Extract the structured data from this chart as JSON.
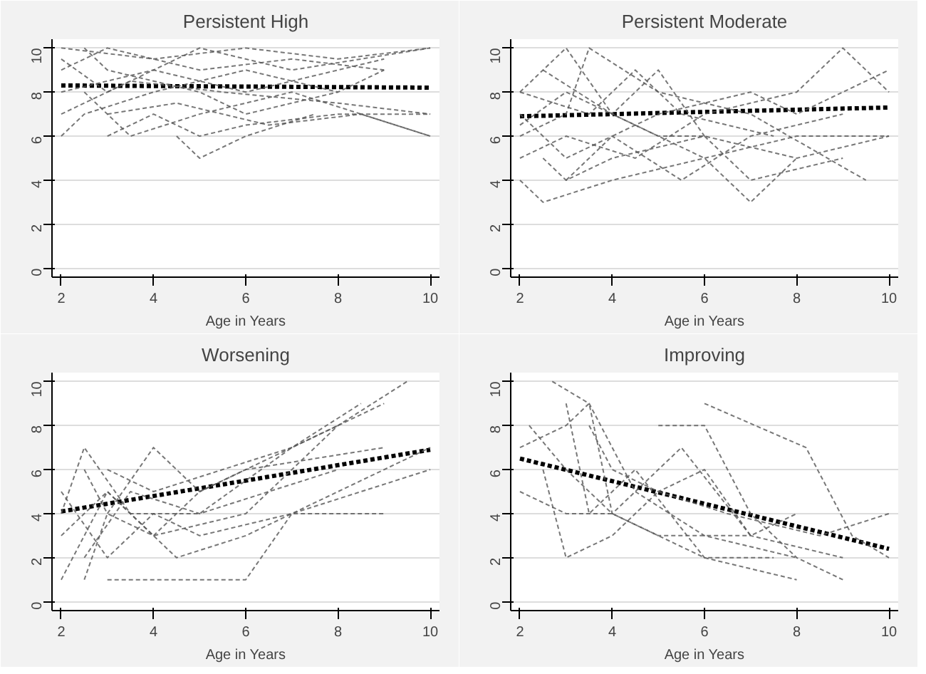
{
  "chart_data": [
    {
      "type": "line",
      "title": "Persistent High",
      "xlabel": "Age in Years",
      "xlim": [
        1.8,
        10.2
      ],
      "ylim": [
        -0.4,
        10.4
      ],
      "xticks": [
        2,
        4,
        6,
        8,
        10
      ],
      "yticks": [
        0,
        2,
        4,
        6,
        8,
        10
      ],
      "grid": "y",
      "line_style": "dashed",
      "series": [
        {
          "color": "#000000",
          "x": [
            2,
            10
          ],
          "values": [
            8.3,
            8.2
          ]
        },
        {
          "color": "#555555",
          "x": [
            2,
            4,
            6,
            8,
            10
          ],
          "values": [
            10,
            9.5,
            10,
            9.5,
            10
          ]
        },
        {
          "color": "#555555",
          "x": [
            2,
            3,
            5,
            7,
            9
          ],
          "values": [
            9,
            10,
            9,
            9.5,
            9
          ]
        },
        {
          "color": "#555555",
          "x": [
            2,
            3.5,
            5.5,
            8,
            10
          ],
          "values": [
            7,
            8.5,
            8,
            7.5,
            7
          ]
        },
        {
          "color": "#555555",
          "x": [
            2,
            2.5,
            4,
            6,
            8
          ],
          "values": [
            6,
            7,
            8,
            9,
            8
          ]
        },
        {
          "color": "#555555",
          "x": [
            2.5,
            3.5,
            5,
            7,
            10
          ],
          "values": [
            8,
            6,
            7,
            8,
            6
          ]
        },
        {
          "color": "#555555",
          "x": [
            4.5,
            5,
            6,
            7.5
          ],
          "values": [
            6,
            5,
            6,
            7
          ]
        },
        {
          "color": "#555555",
          "x": [
            2,
            3,
            4,
            6,
            9
          ],
          "values": [
            9.5,
            8,
            9,
            8,
            9.5
          ]
        },
        {
          "color": "#555555",
          "x": [
            3,
            4,
            5,
            6,
            8,
            10
          ],
          "values": [
            6,
            7,
            6,
            6.5,
            7,
            7
          ]
        },
        {
          "color": "#555555",
          "x": [
            2,
            4,
            5,
            7,
            10
          ],
          "values": [
            8,
            9,
            10,
            9,
            10
          ]
        },
        {
          "color": "#555555",
          "x": [
            2.5,
            3,
            5,
            6,
            8,
            9
          ],
          "values": [
            10,
            9,
            8,
            7,
            8,
            9
          ]
        },
        {
          "color": "#555555",
          "x": [
            3,
            4.5,
            6.5,
            8.5,
            10
          ],
          "values": [
            7,
            7.5,
            6.5,
            7,
            6
          ]
        }
      ]
    },
    {
      "type": "line",
      "title": "Persistent Moderate",
      "xlabel": "Age in Years",
      "xlim": [
        1.8,
        10.2
      ],
      "ylim": [
        -0.4,
        10.4
      ],
      "xticks": [
        2,
        4,
        6,
        8,
        10
      ],
      "yticks": [
        0,
        2,
        4,
        6,
        8,
        10
      ],
      "grid": "y",
      "line_style": "dashed",
      "series": [
        {
          "color": "#000000",
          "x": [
            2,
            10
          ],
          "values": [
            6.9,
            7.3
          ]
        },
        {
          "color": "#555555",
          "x": [
            2,
            3,
            4,
            5,
            6
          ],
          "values": [
            8,
            10,
            7,
            9,
            6
          ]
        },
        {
          "color": "#555555",
          "x": [
            2,
            2.5,
            4,
            6,
            8,
            10
          ],
          "values": [
            4,
            3,
            4,
            5,
            6,
            6
          ]
        },
        {
          "color": "#555555",
          "x": [
            2,
            3,
            3.5,
            5,
            7,
            9.5
          ],
          "values": [
            6,
            7,
            10,
            8,
            7,
            4
          ]
        },
        {
          "color": "#555555",
          "x": [
            2.5,
            4,
            5,
            6,
            7,
            8
          ],
          "values": [
            9,
            7,
            6,
            5,
            3,
            5
          ]
        },
        {
          "color": "#555555",
          "x": [
            2,
            3,
            4.5,
            6,
            8,
            9,
            10
          ],
          "values": [
            5,
            6,
            5,
            7,
            8,
            10,
            8
          ]
        },
        {
          "color": "#555555",
          "x": [
            2,
            3,
            4,
            5.5,
            7,
            9
          ],
          "values": [
            7,
            5,
            6,
            4,
            6,
            7
          ]
        },
        {
          "color": "#555555",
          "x": [
            3,
            4,
            5,
            7,
            8,
            10
          ],
          "values": [
            4,
            6,
            7,
            8,
            7,
            9
          ]
        },
        {
          "color": "#555555",
          "x": [
            2,
            3,
            5,
            6,
            8,
            10
          ],
          "values": [
            6.5,
            8,
            6,
            6,
            5,
            6
          ]
        },
        {
          "color": "#555555",
          "x": [
            2.5,
            3,
            4,
            6,
            7,
            9
          ],
          "values": [
            5,
            4,
            5,
            6,
            4,
            5
          ]
        },
        {
          "color": "#555555",
          "x": [
            2,
            3.5,
            4.5,
            5.5,
            7.5
          ],
          "values": [
            8,
            7,
            9,
            7,
            6
          ]
        }
      ]
    },
    {
      "type": "line",
      "title": "Worsening",
      "xlabel": "Age in Years",
      "xlim": [
        1.8,
        10.2
      ],
      "ylim": [
        -0.4,
        10.4
      ],
      "xticks": [
        2,
        4,
        6,
        8,
        10
      ],
      "yticks": [
        0,
        2,
        4,
        6,
        8,
        10
      ],
      "grid": "y",
      "line_style": "dashed",
      "series": [
        {
          "color": "#000000",
          "x": [
            2,
            10
          ],
          "values": [
            4.1,
            6.9
          ]
        },
        {
          "color": "#555555",
          "x": [
            2,
            3,
            4,
            6,
            8,
            9.5
          ],
          "values": [
            1,
            5,
            3,
            4,
            8,
            10
          ]
        },
        {
          "color": "#555555",
          "x": [
            2.5,
            3,
            4,
            5,
            6,
            9
          ],
          "values": [
            1,
            4,
            3,
            5,
            6,
            7
          ]
        },
        {
          "color": "#555555",
          "x": [
            3,
            4,
            6,
            7,
            10
          ],
          "values": [
            1,
            1,
            1,
            4,
            6
          ]
        },
        {
          "color": "#555555",
          "x": [
            2,
            2.5,
            3.5,
            5,
            7,
            9
          ],
          "values": [
            4,
            7,
            4,
            4,
            7,
            9
          ]
        },
        {
          "color": "#555555",
          "x": [
            2.5,
            3,
            4,
            5,
            6,
            8
          ],
          "values": [
            6,
            4,
            7,
            5,
            6,
            8
          ]
        },
        {
          "color": "#555555",
          "x": [
            2,
            3,
            4.5,
            6,
            8,
            10
          ],
          "values": [
            3,
            5,
            2,
            3,
            5,
            7
          ]
        },
        {
          "color": "#555555",
          "x": [
            2.5,
            3.5,
            5,
            6.5,
            8
          ],
          "values": [
            2,
            5,
            4,
            5,
            6
          ]
        },
        {
          "color": "#555555",
          "x": [
            2,
            3,
            4,
            5,
            7,
            9
          ],
          "values": [
            5,
            2,
            4,
            3,
            4,
            4
          ]
        },
        {
          "color": "#555555",
          "x": [
            3,
            4,
            5.5,
            7,
            8.5
          ],
          "values": [
            6,
            5,
            6,
            7,
            9
          ]
        }
      ]
    },
    {
      "type": "line",
      "title": "Improving",
      "xlabel": "Age in Years",
      "xlim": [
        1.8,
        10.2
      ],
      "ylim": [
        -0.4,
        10.4
      ],
      "xticks": [
        2,
        4,
        6,
        8,
        10
      ],
      "yticks": [
        0,
        2,
        4,
        6,
        8,
        10
      ],
      "grid": "y",
      "line_style": "dashed",
      "series": [
        {
          "color": "#000000",
          "x": [
            2,
            10
          ],
          "values": [
            6.5,
            2.4
          ]
        },
        {
          "color": "#555555",
          "x": [
            2.7,
            3.5,
            4.5,
            6,
            8
          ],
          "values": [
            10,
            9,
            5,
            3,
            2
          ]
        },
        {
          "color": "#555555",
          "x": [
            2,
            3,
            4,
            5,
            6,
            8
          ],
          "values": [
            5,
            4,
            4,
            3,
            2,
            1
          ]
        },
        {
          "color": "#555555",
          "x": [
            5,
            6,
            7,
            8,
            9
          ],
          "values": [
            8,
            8,
            4,
            2,
            1
          ]
        },
        {
          "color": "#555555",
          "x": [
            6,
            8.2,
            9.2,
            10
          ],
          "values": [
            9,
            7,
            3,
            2
          ]
        },
        {
          "color": "#555555",
          "x": [
            2.2,
            3,
            4,
            5,
            7,
            9
          ],
          "values": [
            8,
            6,
            4,
            3,
            3,
            2
          ]
        },
        {
          "color": "#555555",
          "x": [
            3,
            3.5,
            4.5,
            6,
            7.5
          ],
          "values": [
            9,
            4,
            6,
            2,
            2
          ]
        },
        {
          "color": "#555555",
          "x": [
            2,
            3,
            3.5,
            4,
            5.5,
            7
          ],
          "values": [
            7,
            8,
            9,
            4,
            7,
            3
          ]
        },
        {
          "color": "#555555",
          "x": [
            2.5,
            3,
            4,
            5,
            6.5,
            8.5,
            10
          ],
          "values": [
            6,
            2,
            3,
            5,
            4,
            3,
            4
          ]
        },
        {
          "color": "#555555",
          "x": [
            3.5,
            4,
            5,
            6,
            7,
            8
          ],
          "values": [
            8,
            6,
            5,
            6,
            3,
            4
          ]
        }
      ]
    }
  ]
}
